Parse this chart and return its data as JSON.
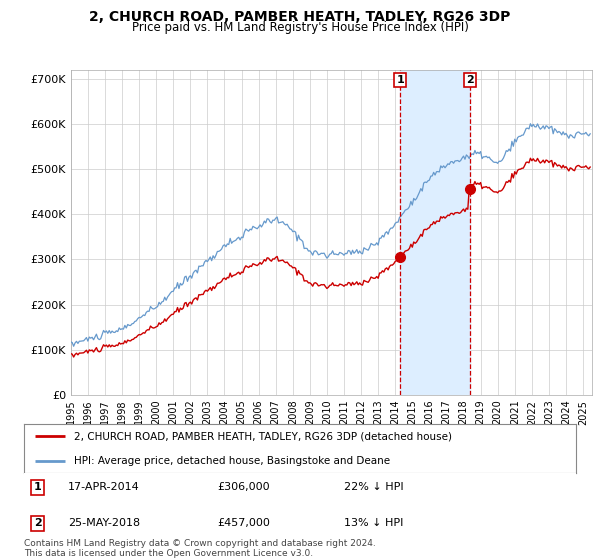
{
  "title": "2, CHURCH ROAD, PAMBER HEATH, TADLEY, RG26 3DP",
  "subtitle": "Price paid vs. HM Land Registry's House Price Index (HPI)",
  "legend_red": "2, CHURCH ROAD, PAMBER HEATH, TADLEY, RG26 3DP (detached house)",
  "legend_blue": "HPI: Average price, detached house, Basingstoke and Deane",
  "footnote": "Contains HM Land Registry data © Crown copyright and database right 2024.\nThis data is licensed under the Open Government Licence v3.0.",
  "purchase1_date": 2014.29,
  "purchase1_price": 306000,
  "purchase2_date": 2018.37,
  "purchase2_price": 457000,
  "red_color": "#cc0000",
  "blue_color": "#6699cc",
  "shade_color": "#ddeeff",
  "bg_color": "#ffffff",
  "grid_color": "#cccccc",
  "ylim": [
    0,
    720000
  ],
  "xlim_start": 1995.0,
  "xlim_end": 2025.5,
  "yticks": [
    0,
    100000,
    200000,
    300000,
    400000,
    500000,
    600000,
    700000
  ],
  "ytick_labels": [
    "£0",
    "£100K",
    "£200K",
    "£300K",
    "£400K",
    "£500K",
    "£600K",
    "£700K"
  ],
  "xtick_years": [
    1995,
    1996,
    1997,
    1998,
    1999,
    2000,
    2001,
    2002,
    2003,
    2004,
    2005,
    2006,
    2007,
    2008,
    2009,
    2010,
    2011,
    2012,
    2013,
    2014,
    2015,
    2016,
    2017,
    2018,
    2019,
    2020,
    2021,
    2022,
    2023,
    2024,
    2025
  ]
}
